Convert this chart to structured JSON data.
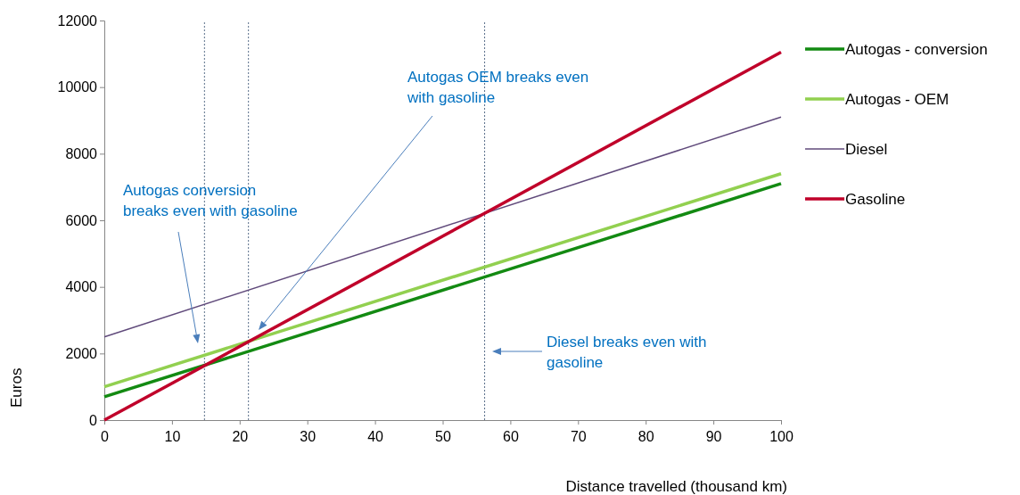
{
  "chart_data": {
    "type": "line",
    "xlabel": "Distance travelled (thousand km)",
    "ylabel": "Euros",
    "x": [
      0,
      100
    ],
    "series": [
      {
        "name": "Autogas - conversion",
        "color": "#138a12",
        "values": [
          700,
          7100
        ]
      },
      {
        "name": "Autogas - OEM",
        "color": "#92d050",
        "values": [
          1000,
          7400
        ]
      },
      {
        "name": "Diesel",
        "color": "#604a7b",
        "values": [
          2500,
          9100
        ]
      },
      {
        "name": "Gasoline",
        "color": "#c0002a",
        "values": [
          0,
          11050
        ]
      }
    ],
    "xlim": [
      0,
      100
    ],
    "xticks": [
      0,
      10,
      20,
      30,
      40,
      50,
      60,
      70,
      80,
      90,
      100
    ],
    "ylim": [
      0,
      12000
    ],
    "yticks": [
      0,
      2000,
      4000,
      6000,
      8000,
      10000,
      12000
    ],
    "grid": false,
    "legend": "right",
    "marker": "none",
    "line_style": "solid",
    "ref_lines": [
      {
        "axis": "x",
        "value": 14.8,
        "color": "#5a6f8a",
        "line_style": "dotted"
      },
      {
        "axis": "x",
        "value": 21.3,
        "color": "#5a6f8a",
        "line_style": "dotted"
      },
      {
        "axis": "x",
        "value": 56.2,
        "color": "#5a6f8a",
        "line_style": "dotted"
      }
    ],
    "annotations": [
      "Autogas conversion breaks even with gasoline",
      "Autogas OEM breaks even with gasoline",
      "Diesel breaks even with gasoline"
    ]
  }
}
